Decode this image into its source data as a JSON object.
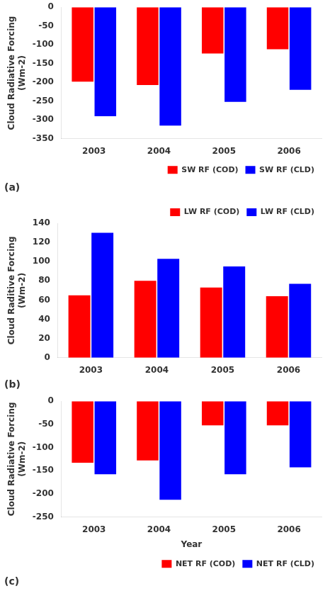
{
  "chart_data": [
    {
      "type": "bar",
      "title": "(a)",
      "categories": [
        "2003",
        "2004",
        "2005",
        "2006"
      ],
      "series": [
        {
          "name": "SW RF (COD)",
          "color": "#FF0000",
          "values": [
            -198,
            -207,
            -123,
            -112
          ]
        },
        {
          "name": "SW RF (CLD)",
          "color": "#0000FF",
          "values": [
            -290,
            -315,
            -252,
            -220
          ]
        }
      ],
      "ylabel": "Cloud Radiative Forcing\n(Wm-2)",
      "ylim": [
        -350,
        0
      ],
      "yticks": [
        -350,
        -300,
        -250,
        -200,
        -150,
        -100,
        -50,
        0
      ],
      "legend": "lower right",
      "grid": false
    },
    {
      "type": "bar",
      "title": "(b)",
      "categories": [
        "2003",
        "2004",
        "2005",
        "2006"
      ],
      "series": [
        {
          "name": "LW RF (COD)",
          "color": "#FF0000",
          "values": [
            65,
            80,
            73,
            64
          ]
        },
        {
          "name": "LW RF (CLD)",
          "color": "#0000FF",
          "values": [
            130,
            103,
            95,
            77
          ]
        }
      ],
      "ylabel": "Cloud Raditive Forcing\n(Wm-2)",
      "ylim": [
        0,
        140
      ],
      "yticks": [
        0,
        20,
        40,
        60,
        80,
        100,
        120,
        140
      ],
      "legend": "upper right",
      "grid": false
    },
    {
      "type": "bar",
      "title": "(c)",
      "categories": [
        "2003",
        "2004",
        "2005",
        "2006"
      ],
      "series": [
        {
          "name": "NET RF (COD)",
          "color": "#FF0000",
          "values": [
            -133,
            -128,
            -52,
            -52
          ]
        },
        {
          "name": "NET RF (CLD)",
          "color": "#0000FF",
          "values": [
            -158,
            -213,
            -158,
            -143
          ]
        }
      ],
      "ylabel": "Cloud Radiative Forcing\n(Wm-2)",
      "xlabel": "Year",
      "ylim": [
        -250,
        0
      ],
      "yticks": [
        -250,
        -200,
        -150,
        -100,
        -50,
        0
      ],
      "legend": "lower right",
      "grid": false
    }
  ]
}
